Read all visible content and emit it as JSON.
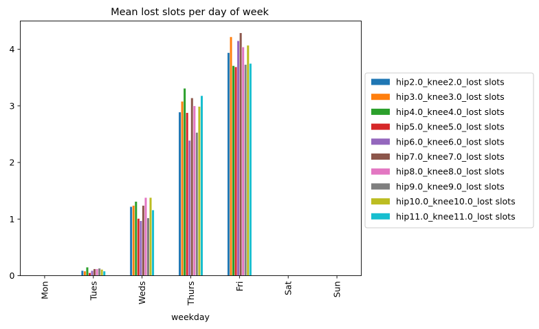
{
  "chart_data": {
    "type": "bar",
    "title": "Mean lost slots per day of week",
    "xlabel": "weekday",
    "ylabel": "",
    "ylim": [
      0,
      4.5
    ],
    "yticks": [
      0,
      1,
      2,
      3,
      4
    ],
    "categories": [
      "Mon",
      "Tues",
      "Weds",
      "Thurs",
      "Fri",
      "Sat",
      "Sun"
    ],
    "legend_position": "outside-right",
    "grid": false,
    "series": [
      {
        "name": "hip2.0_knee2.0_lost slots",
        "color": "#1f77b4",
        "values": [
          0,
          0.09,
          1.22,
          2.89,
          3.94,
          0,
          0
        ]
      },
      {
        "name": "hip3.0_knee3.0_lost slots",
        "color": "#ff7f0e",
        "values": [
          0,
          0.08,
          1.24,
          3.08,
          4.22,
          0,
          0
        ]
      },
      {
        "name": "hip4.0_knee4.0_lost slots",
        "color": "#2ca02c",
        "values": [
          0,
          0.15,
          1.31,
          3.31,
          3.71,
          0,
          0
        ]
      },
      {
        "name": "hip5.0_knee5.0_lost slots",
        "color": "#d62728",
        "values": [
          0,
          0.05,
          1.01,
          2.88,
          3.69,
          0,
          0
        ]
      },
      {
        "name": "hip6.0_knee6.0_lost slots",
        "color": "#9467bd",
        "values": [
          0,
          0.09,
          0.97,
          2.39,
          4.15,
          0,
          0
        ]
      },
      {
        "name": "hip7.0_knee7.0_lost slots",
        "color": "#8c564b",
        "values": [
          0,
          0.12,
          1.24,
          3.14,
          4.29,
          0,
          0
        ]
      },
      {
        "name": "hip8.0_knee8.0_lost slots",
        "color": "#e377c2",
        "values": [
          0,
          0.12,
          1.38,
          3.0,
          4.04,
          0,
          0
        ]
      },
      {
        "name": "hip9.0_knee9.0_lost slots",
        "color": "#7f7f7f",
        "values": [
          0,
          0.13,
          1.02,
          2.53,
          3.73,
          0,
          0
        ]
      },
      {
        "name": "hip10.0_knee10.0_lost slots",
        "color": "#bcbd22",
        "values": [
          0,
          0.11,
          1.38,
          2.99,
          4.07,
          0,
          0
        ]
      },
      {
        "name": "hip11.0_knee11.0_lost slots",
        "color": "#17becf",
        "values": [
          0,
          0.08,
          1.16,
          3.18,
          3.75,
          0,
          0
        ]
      }
    ]
  }
}
